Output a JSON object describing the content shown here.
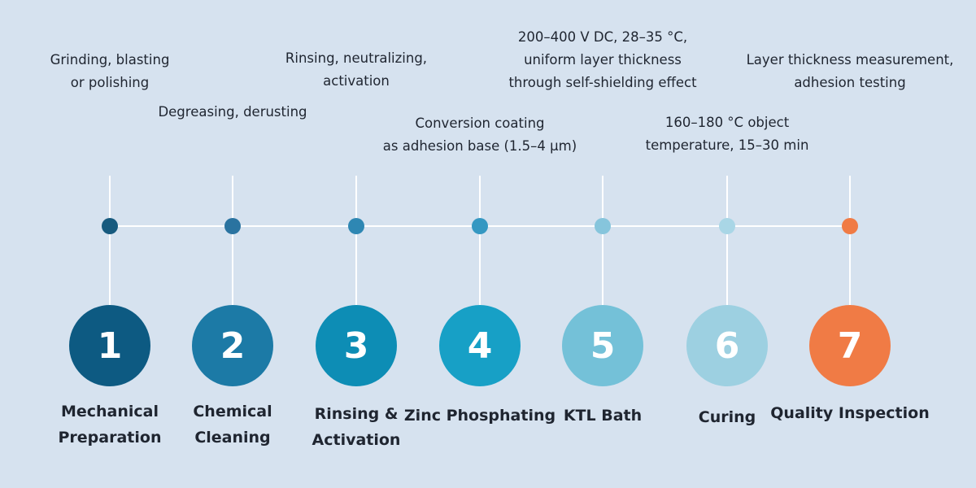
{
  "steps": [
    {
      "number": "1",
      "title": "Mechanical\nPreparation",
      "description": "Grinding, blasting\nor polishing",
      "color": "#0d5a82",
      "dot_color": "#175a7e"
    },
    {
      "number": "2",
      "title": "Chemical\nCleaning",
      "description": "Degreasing, derusting",
      "color": "#1c7aa6",
      "dot_color": "#2a73a0"
    },
    {
      "number": "3",
      "title": "Rinsing &\nActivation",
      "description": "Rinsing, neutralizing,\nactivation",
      "color": "#0d8db5",
      "dot_color": "#2e87b3"
    },
    {
      "number": "4",
      "title": "Zinc Phosphating",
      "description": "Conversion coating\nas adhesion base (1.5–4 µm)",
      "color": "#17a0c6",
      "dot_color": "#3598c2"
    },
    {
      "number": "5",
      "title": "KTL Bath",
      "description": "200–400 V DC, 28–35 °C,\nuniform layer thickness\nthrough self-shielding effect",
      "color": "#74c1d8",
      "dot_color": "#86c5dc"
    },
    {
      "number": "6",
      "title": "Curing",
      "description": "160–180 °C object\ntemperature, 15–30 min",
      "color": "#9dd0e1",
      "dot_color": "#a9d6e6"
    },
    {
      "number": "7",
      "title": "Quality Inspection",
      "description": "Layer thickness measurement,\nadhesion testing",
      "color": "#f07b45",
      "dot_color": "#f07b45"
    }
  ]
}
